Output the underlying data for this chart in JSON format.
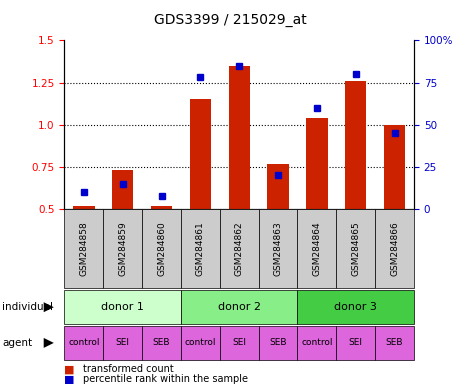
{
  "title": "GDS3399 / 215029_at",
  "samples": [
    "GSM284858",
    "GSM284859",
    "GSM284860",
    "GSM284861",
    "GSM284862",
    "GSM284863",
    "GSM284864",
    "GSM284865",
    "GSM284866"
  ],
  "red_values": [
    0.52,
    0.73,
    0.52,
    1.15,
    1.35,
    0.77,
    1.04,
    1.26,
    1.0
  ],
  "blue_values": [
    10,
    15,
    8,
    78,
    85,
    20,
    60,
    80,
    45
  ],
  "ylim_left": [
    0.5,
    1.5
  ],
  "ylim_right": [
    0,
    100
  ],
  "yticks_left": [
    0.5,
    0.75,
    1.0,
    1.25,
    1.5
  ],
  "yticks_right": [
    0,
    25,
    50,
    75,
    100
  ],
  "ytick_labels_right": [
    "0",
    "25",
    "50",
    "75",
    "100%"
  ],
  "bar_color": "#cc2200",
  "dot_color": "#0000cc",
  "base_value": 0.5,
  "individual_labels": [
    "donor 1",
    "donor 2",
    "donor 3"
  ],
  "individual_colors": [
    "#ccffcc",
    "#88ee88",
    "#44cc44"
  ],
  "agent_labels": [
    "control",
    "SEI",
    "SEB",
    "control",
    "SEI",
    "SEB",
    "control",
    "SEI",
    "SEB"
  ],
  "agent_color": "#dd66dd",
  "row_label_individual": "individual",
  "row_label_agent": "agent",
  "legend_red": "transformed count",
  "legend_blue": "percentile rank within the sample"
}
